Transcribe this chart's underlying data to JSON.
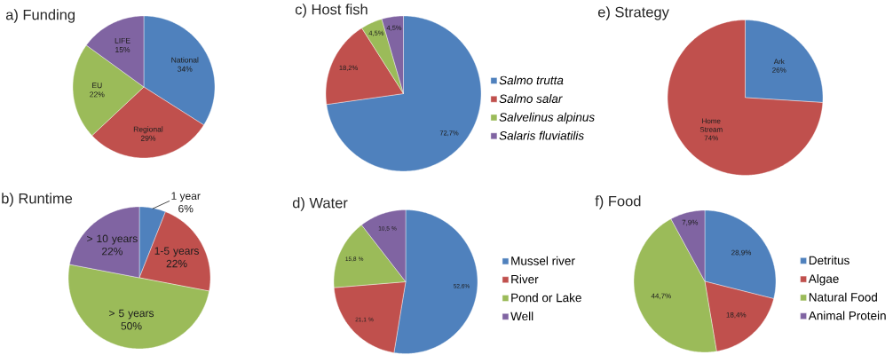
{
  "chart_data": [
    {
      "type": "pie",
      "title": "a) Funding",
      "categories": [
        "National",
        "Regional",
        "EU",
        "LIFE"
      ],
      "values": [
        34,
        29,
        22,
        15
      ],
      "value_labels": [
        "34%",
        "29%",
        "22%",
        "15%"
      ],
      "colors": [
        "#4f81bd",
        "#c0504d",
        "#9bbb59",
        "#8064a2"
      ],
      "legend": false
    },
    {
      "type": "pie",
      "title": "b) Runtime",
      "categories": [
        "1 year",
        "1-5 years",
        "> 5 years",
        "> 10 years"
      ],
      "values": [
        6,
        22,
        50,
        22
      ],
      "value_labels": [
        "6%",
        "22%",
        "50%",
        "22%"
      ],
      "colors": [
        "#4f81bd",
        "#c0504d",
        "#9bbb59",
        "#8064a2"
      ],
      "legend": false
    },
    {
      "type": "pie",
      "title": "c) Host fish",
      "categories": [
        "Salmo trutta",
        "Salmo salar",
        "Salvelinus alpinus",
        "Salaris fluviatilis"
      ],
      "values": [
        72.7,
        18.2,
        4.5,
        4.5
      ],
      "value_labels": [
        "72,7%",
        "18,2%",
        "4,5%",
        "4,5%"
      ],
      "colors": [
        "#4f81bd",
        "#c0504d",
        "#9bbb59",
        "#8064a2"
      ],
      "legend": "right"
    },
    {
      "type": "pie",
      "title": "d) Water",
      "categories": [
        "Mussel river",
        "River",
        "Pond or Lake",
        "Well"
      ],
      "values": [
        52.6,
        21.1,
        15.8,
        10.5
      ],
      "value_labels": [
        "52,6%",
        "21,1 %",
        "15,8 %",
        "10,5 %"
      ],
      "colors": [
        "#4f81bd",
        "#c0504d",
        "#9bbb59",
        "#8064a2"
      ],
      "legend": "right"
    },
    {
      "type": "pie",
      "title": "e) Strategy",
      "categories": [
        "Ark",
        "Home Stream"
      ],
      "values": [
        26,
        74
      ],
      "value_labels": [
        "26%",
        "74%"
      ],
      "colors": [
        "#4f81bd",
        "#c0504d"
      ],
      "legend": false
    },
    {
      "type": "pie",
      "title": "f) Food",
      "categories": [
        "Detritus",
        "Algae",
        "Natural Food",
        "Animal Protein"
      ],
      "values": [
        28.9,
        18.4,
        44.7,
        7.9
      ],
      "value_labels": [
        "28,9%",
        "18,4%",
        "44,7%",
        "7,9%"
      ],
      "colors": [
        "#4f81bd",
        "#c0504d",
        "#9bbb59",
        "#8064a2"
      ],
      "legend": "right"
    }
  ]
}
